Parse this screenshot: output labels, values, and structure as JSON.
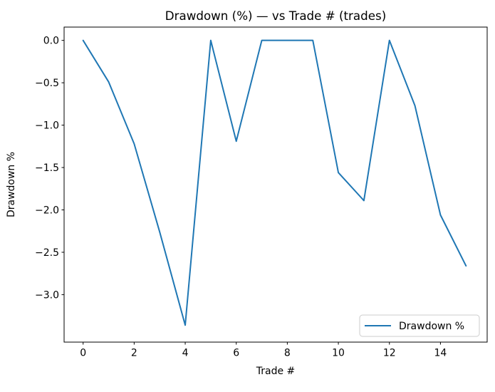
{
  "chart_data": {
    "type": "line",
    "title": "Drawdown (%) — vs Trade # (trades)",
    "xlabel": "Trade #",
    "ylabel": "Drawdown %",
    "x": [
      0,
      1,
      2,
      3,
      4,
      5,
      6,
      7,
      8,
      9,
      10,
      11,
      12,
      13,
      14,
      15
    ],
    "series": [
      {
        "name": "Drawdown %",
        "color": "#1f77b4",
        "values": [
          0.0,
          -0.49,
          -1.22,
          -2.26,
          -3.36,
          0.0,
          -1.19,
          0.0,
          0.0,
          0.0,
          -1.56,
          -1.89,
          0.0,
          -0.77,
          -2.06,
          -2.66
        ]
      }
    ],
    "xlim": [
      -0.745,
      15.83
    ],
    "ylim": [
      -3.56,
      0.157
    ],
    "xticks": {
      "values": [
        0,
        2,
        4,
        6,
        8,
        10,
        12,
        14
      ],
      "labels": [
        "0",
        "2",
        "4",
        "6",
        "8",
        "10",
        "12",
        "14"
      ]
    },
    "yticks": {
      "values": [
        0.0,
        -0.5,
        -1.0,
        -1.5,
        -2.0,
        -2.5,
        -3.0
      ],
      "labels": [
        "0.0",
        "−0.5",
        "−1.0",
        "−1.5",
        "−2.0",
        "−2.5",
        "−3.0"
      ]
    },
    "legend": {
      "position": "lower right",
      "entries": [
        {
          "label": "Drawdown %",
          "color": "#1f77b4"
        }
      ]
    },
    "grid": false,
    "colors": {
      "line": "#1f77b4",
      "spine": "#000000",
      "background": "#ffffff",
      "legend_border": "#cccccc"
    }
  }
}
